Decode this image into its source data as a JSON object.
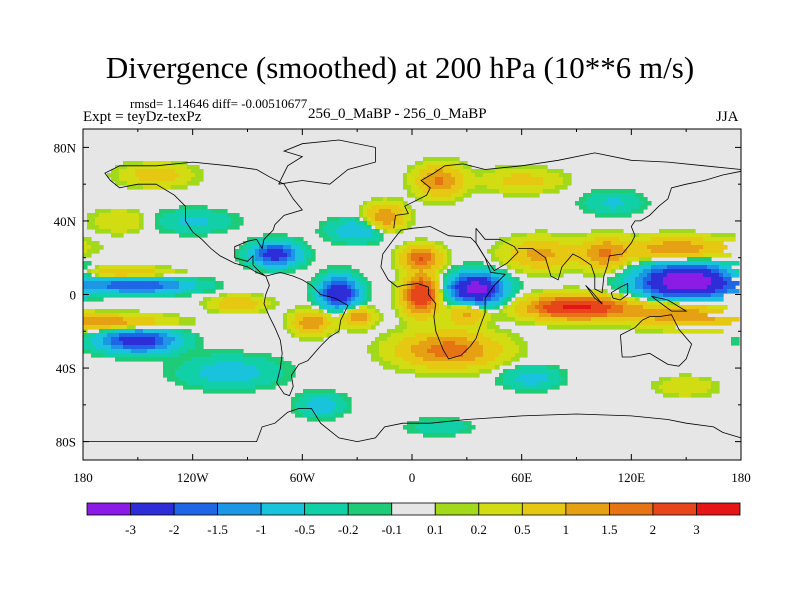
{
  "chart_data": {
    "type": "heatmap",
    "title": "Divergence (smoothed) at 200 hPa (10**6 m/s)",
    "stats_text": "rmsd= 1.14646  diff= -0.00510677",
    "experiment": "Expt = teyDz-texPz",
    "run": "256_0_MaBP - 256_0_MaBP",
    "season": "JJA",
    "xlim": [
      -180,
      180
    ],
    "ylim": [
      -90,
      90
    ],
    "x_ticks": [
      {
        "value": -180,
        "label": "180"
      },
      {
        "value": -120,
        "label": "120W"
      },
      {
        "value": -60,
        "label": "60W"
      },
      {
        "value": 0,
        "label": "0"
      },
      {
        "value": 60,
        "label": "60E"
      },
      {
        "value": 120,
        "label": "120E"
      },
      {
        "value": 180,
        "label": "180"
      }
    ],
    "y_ticks": [
      {
        "value": 80,
        "label": "80N"
      },
      {
        "value": 40,
        "label": "40N"
      },
      {
        "value": 0,
        "label": "0"
      },
      {
        "value": -40,
        "label": "40S"
      },
      {
        "value": -80,
        "label": "80S"
      }
    ],
    "colorbar": {
      "colors": [
        "#8a1ce6",
        "#2e2ed8",
        "#1f66e6",
        "#1e96e6",
        "#19c3dc",
        "#11cfa6",
        "#1ecc78",
        "#e6e6e6",
        "#a2d91a",
        "#d2dc12",
        "#e6c813",
        "#e6a014",
        "#e67314",
        "#e6461a",
        "#e61414"
      ],
      "labels": [
        "-3",
        "-2",
        "-1.5",
        "-1",
        "-0.5",
        "-0.2",
        "-0.1",
        "0.1",
        "0.2",
        "0.5",
        "1",
        "1.5",
        "2",
        "3"
      ]
    },
    "features": [
      {
        "lon": 150,
        "lat": 7,
        "rlon": 24,
        "rlat": 9,
        "amp": -4.2
      },
      {
        "lon": 35,
        "lat": 3,
        "rlon": 14,
        "rlat": 8,
        "amp": -3.6
      },
      {
        "lon": -40,
        "lat": 1,
        "rlon": 10,
        "rlat": 8,
        "amp": -3.0
      },
      {
        "lon": -75,
        "lat": 22,
        "rlon": 12,
        "rlat": 6,
        "amp": -2.6
      },
      {
        "lon": -150,
        "lat": -25,
        "rlon": 20,
        "rlat": 6,
        "amp": -2.6
      },
      {
        "lon": -150,
        "lat": 5,
        "rlon": 28,
        "rlat": 4,
        "amp": -2.0
      },
      {
        "lon": -165,
        "lat": -15,
        "rlon": 30,
        "rlat": 4,
        "amp": 1.3
      },
      {
        "lon": -160,
        "lat": 12,
        "rlon": 25,
        "rlat": 3,
        "amp": 1.0
      },
      {
        "lon": -95,
        "lat": -5,
        "rlon": 14,
        "rlat": 4,
        "amp": 1.0
      },
      {
        "lon": 5,
        "lat": 0,
        "rlon": 9,
        "rlat": 10,
        "amp": 3.0
      },
      {
        "lon": 5,
        "lat": 20,
        "rlon": 10,
        "rlat": 6,
        "amp": 2.0
      },
      {
        "lon": 90,
        "lat": -7,
        "rlon": 26,
        "rlat": 6,
        "amp": 3.2
      },
      {
        "lon": 20,
        "lat": -30,
        "rlon": 26,
        "rlat": 9,
        "amp": 1.8
      },
      {
        "lon": 30,
        "lat": -10,
        "rlon": 10,
        "rlat": 6,
        "amp": 1.2
      },
      {
        "lon": 145,
        "lat": 25,
        "rlon": 28,
        "rlat": 6,
        "amp": 1.4
      },
      {
        "lon": 145,
        "lat": -10,
        "rlon": 25,
        "rlat": 7,
        "amp": 1.5
      },
      {
        "lon": 105,
        "lat": 22,
        "rlon": 12,
        "rlat": 8,
        "amp": 1.5
      },
      {
        "lon": 70,
        "lat": 22,
        "rlon": 18,
        "rlat": 8,
        "amp": 1.2
      },
      {
        "lon": -15,
        "lat": 42,
        "rlon": 10,
        "rlat": 7,
        "amp": 1.5
      },
      {
        "lon": 15,
        "lat": 62,
        "rlon": 12,
        "rlat": 8,
        "amp": 1.6
      },
      {
        "lon": -55,
        "lat": -15,
        "rlon": 10,
        "rlat": 6,
        "amp": 1.5
      },
      {
        "lon": -30,
        "lat": -12,
        "rlon": 8,
        "rlat": 5,
        "amp": 1.5
      },
      {
        "lon": -30,
        "lat": 35,
        "rlon": 15,
        "rlat": 6,
        "amp": -0.9
      },
      {
        "lon": -100,
        "lat": -42,
        "rlon": 25,
        "rlat": 8,
        "amp": -0.8
      },
      {
        "lon": 65,
        "lat": -45,
        "rlon": 15,
        "rlat": 6,
        "amp": -0.7
      },
      {
        "lon": 110,
        "lat": 50,
        "rlon": 15,
        "rlat": 6,
        "amp": -0.6
      },
      {
        "lon": -120,
        "lat": 40,
        "rlon": 20,
        "rlat": 6,
        "amp": -0.6
      },
      {
        "lon": 60,
        "lat": 62,
        "rlon": 20,
        "rlat": 6,
        "amp": 0.7
      },
      {
        "lon": -140,
        "lat": 65,
        "rlon": 18,
        "rlat": 6,
        "amp": 0.8
      },
      {
        "lon": -160,
        "lat": 40,
        "rlon": 15,
        "rlat": 6,
        "amp": 0.5
      },
      {
        "lon": -50,
        "lat": -60,
        "rlon": 12,
        "rlat": 6,
        "amp": -0.8
      },
      {
        "lon": 15,
        "lat": -72,
        "rlon": 15,
        "rlat": 4,
        "amp": -0.5
      },
      {
        "lon": 150,
        "lat": -50,
        "rlon": 15,
        "rlat": 5,
        "amp": 0.5
      }
    ],
    "coastlines": [
      [
        [
          -180,
          -80
        ],
        [
          -85,
          -80
        ],
        [
          -82,
          -72
        ],
        [
          -75,
          -70
        ],
        [
          -68,
          -64
        ],
        [
          -62,
          -62
        ],
        [
          -55,
          -62
        ],
        [
          -50,
          -70
        ],
        [
          -40,
          -78
        ],
        [
          -30,
          -80
        ],
        [
          -20,
          -78
        ],
        [
          -15,
          -72
        ],
        [
          -5,
          -70
        ],
        [
          10,
          -70
        ],
        [
          30,
          -68
        ],
        [
          60,
          -66
        ],
        [
          90,
          -65
        ],
        [
          120,
          -66
        ],
        [
          140,
          -68
        ],
        [
          150,
          -70
        ],
        [
          165,
          -72
        ],
        [
          170,
          -75
        ],
        [
          180,
          -78
        ]
      ],
      [
        [
          -80,
          10
        ],
        [
          -78,
          5
        ],
        [
          -80,
          0
        ],
        [
          -81,
          -5
        ],
        [
          -78,
          -12
        ],
        [
          -75,
          -18
        ],
        [
          -72,
          -25
        ],
        [
          -71,
          -32
        ],
        [
          -72,
          -40
        ],
        [
          -74,
          -48
        ],
        [
          -70,
          -54
        ],
        [
          -67,
          -55
        ],
        [
          -65,
          -50
        ],
        [
          -66,
          -44
        ],
        [
          -62,
          -38
        ],
        [
          -57,
          -36
        ],
        [
          -50,
          -28
        ],
        [
          -45,
          -23
        ],
        [
          -40,
          -20
        ],
        [
          -39,
          -14
        ],
        [
          -35,
          -6
        ],
        [
          -42,
          -2
        ],
        [
          -50,
          0
        ],
        [
          -55,
          5
        ],
        [
          -60,
          8
        ],
        [
          -65,
          10
        ],
        [
          -72,
          12
        ],
        [
          -80,
          10
        ]
      ],
      [
        [
          -80,
          10
        ],
        [
          -85,
          12
        ],
        [
          -90,
          15
        ],
        [
          -97,
          17
        ],
        [
          -105,
          21
        ],
        [
          -110,
          25
        ],
        [
          -115,
          30
        ],
        [
          -120,
          34
        ],
        [
          -124,
          40
        ],
        [
          -124,
          48
        ],
        [
          -130,
          54
        ],
        [
          -140,
          60
        ],
        [
          -150,
          60
        ],
        [
          -160,
          58
        ],
        [
          -165,
          62
        ],
        [
          -168,
          66
        ],
        [
          -160,
          70
        ],
        [
          -140,
          70
        ],
        [
          -120,
          72
        ],
        [
          -100,
          70
        ],
        [
          -85,
          68
        ],
        [
          -78,
          64
        ],
        [
          -70,
          60
        ],
        [
          -65,
          52
        ],
        [
          -60,
          46
        ],
        [
          -70,
          43
        ],
        [
          -75,
          38
        ],
        [
          -76,
          35
        ],
        [
          -81,
          30
        ],
        [
          -82,
          25
        ],
        [
          -85,
          30
        ],
        [
          -90,
          29
        ],
        [
          -97,
          26
        ],
        [
          -97,
          20
        ],
        [
          -90,
          18
        ],
        [
          -87,
          21
        ],
        [
          -87,
          16
        ],
        [
          -83,
          12
        ],
        [
          -80,
          10
        ]
      ],
      [
        [
          -73,
          60
        ],
        [
          -60,
          62
        ],
        [
          -45,
          60
        ],
        [
          -35,
          68
        ],
        [
          -20,
          72
        ],
        [
          -20,
          80
        ],
        [
          -40,
          84
        ],
        [
          -60,
          82
        ],
        [
          -70,
          78
        ],
        [
          -60,
          75
        ],
        [
          -68,
          70
        ],
        [
          -73,
          60
        ]
      ],
      [
        [
          -17,
          15
        ],
        [
          -16,
          22
        ],
        [
          -10,
          30
        ],
        [
          -6,
          35
        ],
        [
          0,
          36
        ],
        [
          10,
          37
        ],
        [
          20,
          32
        ],
        [
          32,
          31
        ],
        [
          35,
          28
        ],
        [
          40,
          20
        ],
        [
          43,
          12
        ],
        [
          51,
          11
        ],
        [
          45,
          5
        ],
        [
          40,
          -2
        ],
        [
          40,
          -10
        ],
        [
          37,
          -18
        ],
        [
          35,
          -24
        ],
        [
          32,
          -28
        ],
        [
          27,
          -33
        ],
        [
          20,
          -35
        ],
        [
          17,
          -30
        ],
        [
          13,
          -20
        ],
        [
          12,
          -12
        ],
        [
          13,
          -5
        ],
        [
          9,
          0
        ],
        [
          9,
          4
        ],
        [
          3,
          6
        ],
        [
          -5,
          5
        ],
        [
          -8,
          4
        ],
        [
          -13,
          8
        ],
        [
          -17,
          15
        ]
      ],
      [
        [
          -10,
          36
        ],
        [
          -9,
          43
        ],
        [
          -2,
          44
        ],
        [
          -4,
          48
        ],
        [
          2,
          51
        ],
        [
          8,
          54
        ],
        [
          10,
          58
        ],
        [
          5,
          62
        ],
        [
          12,
          66
        ],
        [
          18,
          70
        ],
        [
          28,
          71
        ],
        [
          40,
          68
        ],
        [
          60,
          70
        ],
        [
          80,
          73
        ],
        [
          100,
          77
        ],
        [
          120,
          73
        ],
        [
          140,
          72
        ],
        [
          160,
          70
        ],
        [
          180,
          68
        ]
      ],
      [
        [
          35,
          36
        ],
        [
          40,
          30
        ],
        [
          48,
          30
        ],
        [
          56,
          26
        ],
        [
          58,
          23
        ],
        [
          52,
          17
        ],
        [
          45,
          13
        ],
        [
          40,
          20
        ],
        [
          35,
          28
        ],
        [
          35,
          36
        ]
      ],
      [
        [
          58,
          25
        ],
        [
          66,
          25
        ],
        [
          73,
          20
        ],
        [
          76,
          10
        ],
        [
          80,
          8
        ],
        [
          82,
          15
        ],
        [
          88,
          22
        ],
        [
          92,
          20
        ],
        [
          98,
          16
        ],
        [
          100,
          10
        ],
        [
          100,
          3
        ],
        [
          104,
          1
        ],
        [
          105,
          10
        ],
        [
          107,
          16
        ],
        [
          108,
          21
        ],
        [
          115,
          22
        ],
        [
          120,
          28
        ],
        [
          122,
          32
        ],
        [
          120,
          37
        ],
        [
          122,
          40
        ],
        [
          125,
          40
        ],
        [
          130,
          43
        ],
        [
          135,
          48
        ],
        [
          140,
          52
        ],
        [
          142,
          58
        ],
        [
          150,
          60
        ],
        [
          160,
          62
        ],
        [
          170,
          65
        ],
        [
          180,
          67
        ]
      ],
      [
        [
          114,
          -22
        ],
        [
          115,
          -34
        ],
        [
          120,
          -34
        ],
        [
          130,
          -32
        ],
        [
          135,
          -35
        ],
        [
          140,
          -38
        ],
        [
          146,
          -39
        ],
        [
          150,
          -35
        ],
        [
          153,
          -27
        ],
        [
          146,
          -19
        ],
        [
          142,
          -11
        ],
        [
          135,
          -12
        ],
        [
          130,
          -12
        ],
        [
          126,
          -14
        ],
        [
          122,
          -18
        ],
        [
          114,
          -22
        ]
      ],
      [
        [
          95,
          5
        ],
        [
          98,
          2
        ],
        [
          104,
          -5
        ],
        [
          100,
          -2
        ],
        [
          95,
          5
        ]
      ],
      [
        [
          109,
          1
        ],
        [
          114,
          4
        ],
        [
          118,
          6
        ],
        [
          118,
          0
        ],
        [
          114,
          -3
        ],
        [
          110,
          -2
        ],
        [
          109,
          1
        ]
      ],
      [
        [
          131,
          -1
        ],
        [
          140,
          -3
        ],
        [
          150,
          -9
        ],
        [
          142,
          -9
        ],
        [
          131,
          -1
        ]
      ]
    ]
  }
}
